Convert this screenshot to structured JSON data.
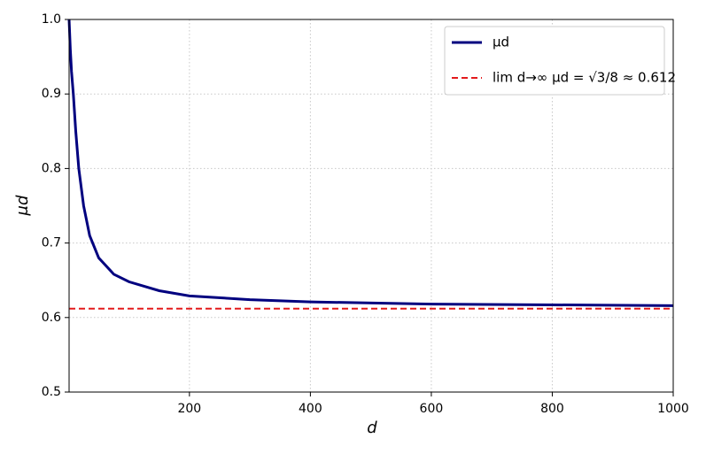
{
  "chart_data": {
    "type": "line",
    "xlabel": "d",
    "ylabel": "μd",
    "xlim": [
      1,
      1000
    ],
    "ylim": [
      0.5,
      1.0
    ],
    "xticks": [
      200,
      400,
      600,
      800,
      1000
    ],
    "yticks": [
      0.5,
      0.6,
      0.7,
      0.8,
      0.9,
      {
        "value": 1.0,
        "label": "1.0"
      }
    ],
    "grid": true,
    "legend": "upper right",
    "series": [
      {
        "name": "μd",
        "color": "#00007f",
        "dash": false,
        "x": [
          1,
          3,
          5,
          8,
          12,
          17,
          25,
          35,
          50,
          75,
          100,
          150,
          200,
          300,
          400,
          600,
          800,
          1000
        ],
        "values": [
          1.0,
          0.96,
          0.93,
          0.9,
          0.85,
          0.8,
          0.75,
          0.71,
          0.68,
          0.658,
          0.648,
          0.636,
          0.629,
          0.624,
          0.621,
          0.618,
          0.617,
          0.616
        ]
      },
      {
        "name": "lim d→∞ μd = √3/8 ≈ 0.612",
        "color": "#e31a1c",
        "dash": true,
        "x": [
          1,
          1000
        ],
        "values": [
          0.612,
          0.612
        ]
      }
    ]
  }
}
